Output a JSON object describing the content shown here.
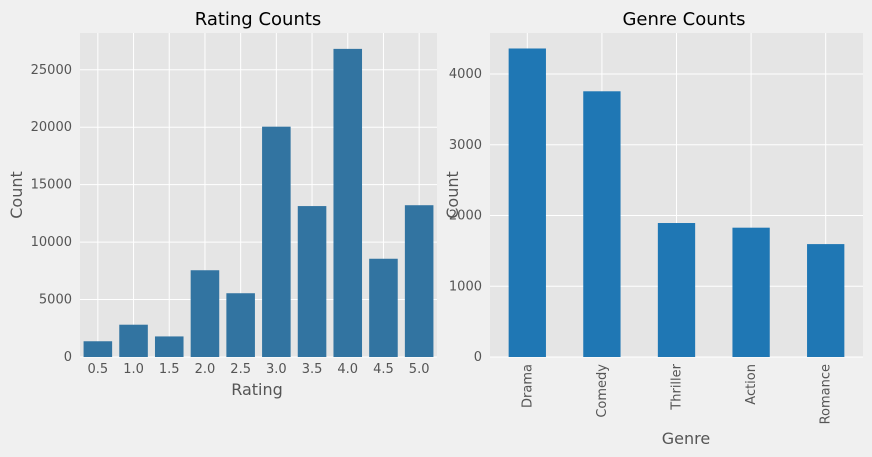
{
  "chart_data": [
    {
      "type": "bar",
      "title": "Rating Counts",
      "xlabel": "Rating",
      "ylabel": "Count",
      "categories": [
        "0.5",
        "1.0",
        "1.5",
        "2.0",
        "2.5",
        "3.0",
        "3.5",
        "4.0",
        "4.5",
        "5.0"
      ],
      "values": [
        1370,
        2811,
        1791,
        7551,
        5550,
        20047,
        13136,
        26818,
        8551,
        13211
      ],
      "ylim": [
        0,
        28200
      ],
      "yticks": [
        0,
        5000,
        10000,
        15000,
        20000,
        25000
      ],
      "ytick_labels": [
        "0",
        "5000",
        "10000",
        "15000",
        "20000",
        "25000"
      ],
      "grid": true,
      "bar_color": "#3274a1"
    },
    {
      "type": "bar",
      "title": "Genre Counts",
      "xlabel": "Genre",
      "ylabel": "Count",
      "categories": [
        "Drama",
        "Comedy",
        "Thriller",
        "Action",
        "Romance"
      ],
      "values": [
        4361,
        3756,
        1894,
        1828,
        1596
      ],
      "ylim": [
        0,
        4580
      ],
      "yticks": [
        0,
        1000,
        2000,
        3000,
        4000
      ],
      "ytick_labels": [
        "0",
        "1000",
        "2000",
        "3000",
        "4000"
      ],
      "grid": true,
      "rotate_xticks": true,
      "bar_color": "#1f77b4"
    }
  ],
  "style": {
    "figure_background": "#f0f0f0",
    "axes_background": "#e5e5e5",
    "grid_color": "#ffffff"
  }
}
